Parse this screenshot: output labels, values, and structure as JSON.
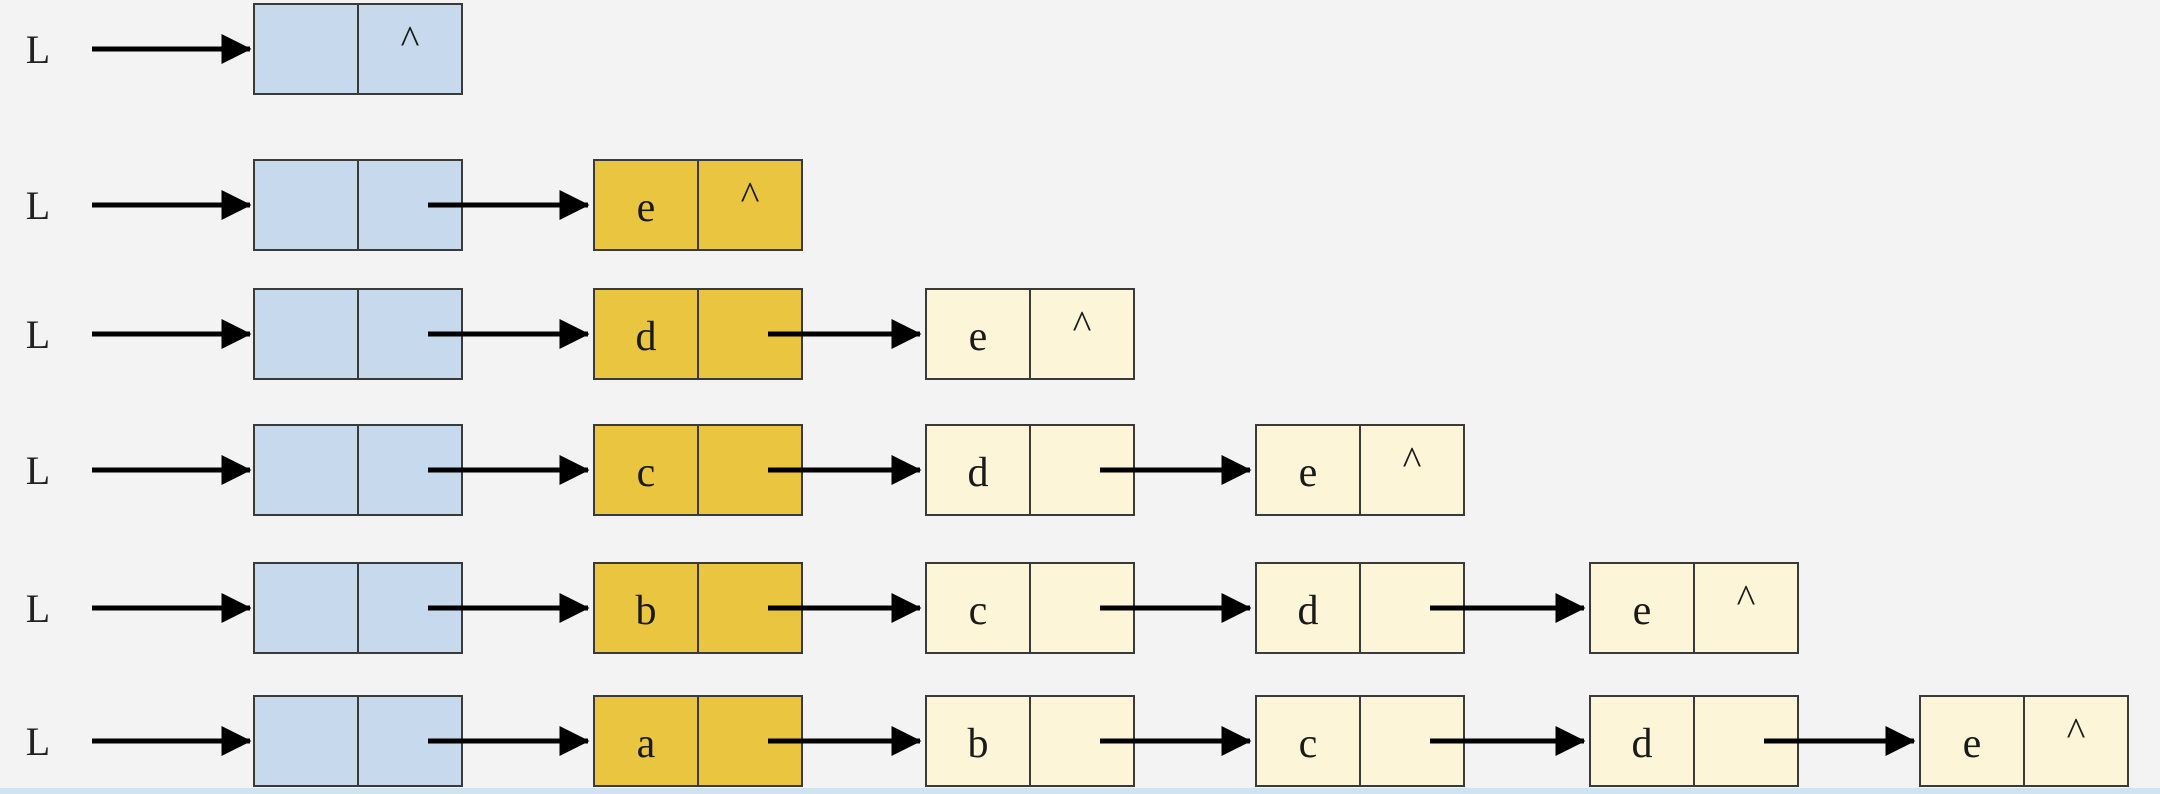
{
  "diagram": {
    "colors": {
      "background": "#f3f3f3",
      "head_node": "#c7d9ec",
      "new_node": "#eac53f",
      "old_node": "#fcf5d8",
      "border": "#3a3a3a",
      "arrow": "#000000"
    },
    "rows": [
      {
        "label": "L",
        "nodes": [
          {
            "kind": "head",
            "data": "",
            "next": "^"
          }
        ]
      },
      {
        "label": "L",
        "nodes": [
          {
            "kind": "head",
            "data": "",
            "next": ""
          },
          {
            "kind": "new",
            "data": "e",
            "next": "^"
          }
        ]
      },
      {
        "label": "L",
        "nodes": [
          {
            "kind": "head",
            "data": "",
            "next": ""
          },
          {
            "kind": "new",
            "data": "d",
            "next": ""
          },
          {
            "kind": "old",
            "data": "e",
            "next": "^"
          }
        ]
      },
      {
        "label": "L",
        "nodes": [
          {
            "kind": "head",
            "data": "",
            "next": ""
          },
          {
            "kind": "new",
            "data": "c",
            "next": ""
          },
          {
            "kind": "old",
            "data": "d",
            "next": ""
          },
          {
            "kind": "old",
            "data": "e",
            "next": "^"
          }
        ]
      },
      {
        "label": "L",
        "nodes": [
          {
            "kind": "head",
            "data": "",
            "next": ""
          },
          {
            "kind": "new",
            "data": "b",
            "next": ""
          },
          {
            "kind": "old",
            "data": "c",
            "next": ""
          },
          {
            "kind": "old",
            "data": "d",
            "next": ""
          },
          {
            "kind": "old",
            "data": "e",
            "next": "^"
          }
        ]
      },
      {
        "label": "L",
        "nodes": [
          {
            "kind": "head",
            "data": "",
            "next": ""
          },
          {
            "kind": "new",
            "data": "a",
            "next": ""
          },
          {
            "kind": "old",
            "data": "b",
            "next": ""
          },
          {
            "kind": "old",
            "data": "c",
            "next": ""
          },
          {
            "kind": "old",
            "data": "d",
            "next": ""
          },
          {
            "kind": "old",
            "data": "e",
            "next": "^"
          }
        ]
      }
    ]
  }
}
